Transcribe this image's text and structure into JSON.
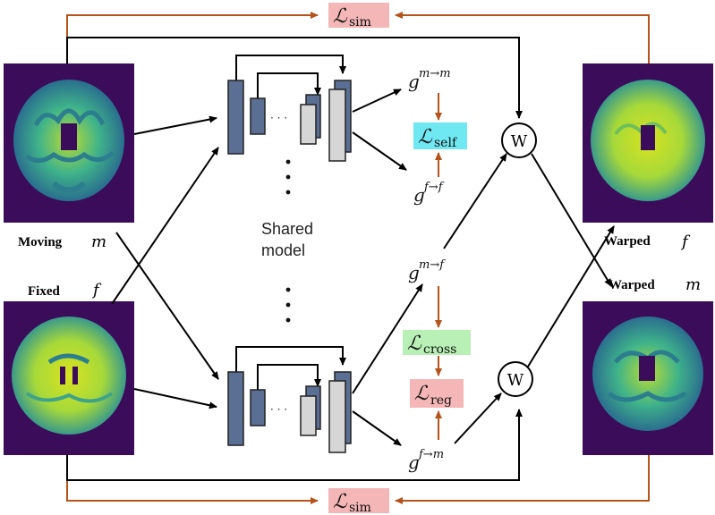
{
  "labels": {
    "moving": "Moving",
    "moving_var": "m",
    "fixed": "Fixed",
    "fixed_var": "f",
    "warped_f": "Warped",
    "warped_f_var": "f",
    "warped_m": "Warped",
    "warped_m_var": "m",
    "shared_model_line1": "Shared",
    "shared_model_line2": "model",
    "warp_node": "W",
    "dots_h": "· · ·"
  },
  "losses": {
    "sim": {
      "main": "ℒ",
      "sub": "sim"
    },
    "self": {
      "main": "ℒ",
      "sub": "self"
    },
    "cross": {
      "main": "ℒ",
      "sub": "cross"
    },
    "reg": {
      "main": "ℒ",
      "sub": "reg"
    }
  },
  "fields": {
    "g_mm": {
      "base": "g",
      "sup": "m→m"
    },
    "g_ff": {
      "base": "g",
      "sup": "f→f"
    },
    "g_mf": {
      "base": "g",
      "sup": "m→f"
    },
    "g_fm": {
      "base": "g",
      "sup": "f→m"
    }
  },
  "colors": {
    "loss_sim_bg": "#f4b6b6",
    "loss_self_bg": "#6fe8f2",
    "loss_cross_bg": "#b9f0b5",
    "loss_reg_bg": "#f4b6b6",
    "orange_arrow": "#b5541a",
    "block_dark": "#5b6f94",
    "block_light": "#d6d6d6",
    "mri_bg": "#3b0c5a"
  }
}
